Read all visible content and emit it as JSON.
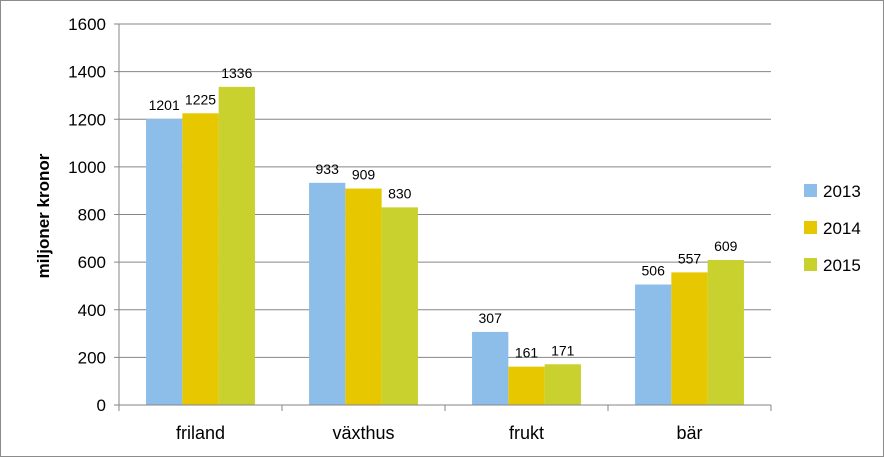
{
  "chart_data": {
    "type": "bar",
    "title": "",
    "xlabel": "",
    "ylabel": "miljoner kronor",
    "ylim": [
      0,
      1600
    ],
    "ytick_step": 200,
    "grid": true,
    "legend_position": "right",
    "categories": [
      "friland",
      "växthus",
      "frukt",
      "bär"
    ],
    "series": [
      {
        "name": "2013",
        "color": "#8DBDE9",
        "values": [
          1201,
          933,
          307,
          506
        ]
      },
      {
        "name": "2014",
        "color": "#E6C700",
        "values": [
          1225,
          909,
          161,
          557
        ]
      },
      {
        "name": "2015",
        "color": "#C9D12E",
        "values": [
          1336,
          830,
          171,
          609
        ]
      }
    ]
  }
}
